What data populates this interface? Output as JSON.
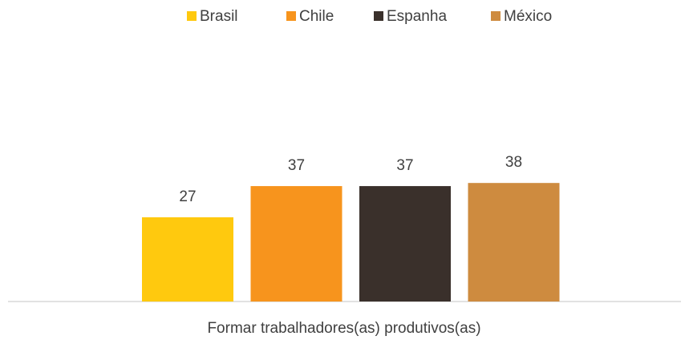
{
  "chart_data": {
    "type": "bar",
    "categories": [
      "Formar trabalhadores(as) produtivos(as)"
    ],
    "series": [
      {
        "name": "Brasil",
        "color": "#ffc90e",
        "values": [
          27
        ]
      },
      {
        "name": "Chile",
        "color": "#f7941d",
        "values": [
          37
        ]
      },
      {
        "name": "Espanha",
        "color": "#3a302b",
        "values": [
          37
        ]
      },
      {
        "name": "México",
        "color": "#ce8b3f",
        "values": [
          38
        ]
      }
    ],
    "legend": "top"
  }
}
